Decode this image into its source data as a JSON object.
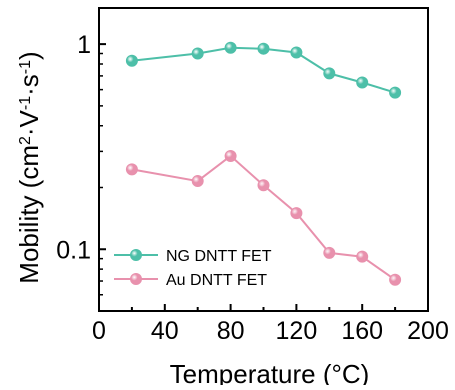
{
  "chart_data": {
    "type": "line",
    "xlabel": "Temperature (°C)",
    "ylabel_parts": {
      "base": "Mobility (cm",
      "sup1": "2",
      "mid": "·V",
      "sup2": "-1",
      "mid2": "·s",
      "sup3": "-1",
      "end": ")"
    },
    "x_scale": "linear",
    "y_scale": "log",
    "xlim": [
      0,
      200
    ],
    "ylim": [
      0.05,
      1.5
    ],
    "x_ticks": [
      0,
      40,
      80,
      120,
      160,
      200
    ],
    "x_tick_labels": [
      "0",
      "40",
      "80",
      "120",
      "160",
      "200"
    ],
    "y_ticks": [
      0.1,
      1
    ],
    "y_tick_labels": [
      "0.1",
      "1"
    ],
    "legend_position": "bottom-left",
    "grid": false,
    "series": [
      {
        "name": "NG DNTT FET",
        "color": "#4dbfa8",
        "x": [
          20,
          60,
          80,
          100,
          120,
          140,
          160,
          180
        ],
        "y": [
          0.83,
          0.9,
          0.96,
          0.95,
          0.91,
          0.72,
          0.65,
          0.58
        ]
      },
      {
        "name": "Au DNTT FET",
        "color": "#e891ad",
        "x": [
          20,
          60,
          80,
          100,
          120,
          140,
          160,
          180
        ],
        "y": [
          0.245,
          0.215,
          0.285,
          0.205,
          0.15,
          0.096,
          0.092,
          0.071
        ]
      }
    ]
  }
}
